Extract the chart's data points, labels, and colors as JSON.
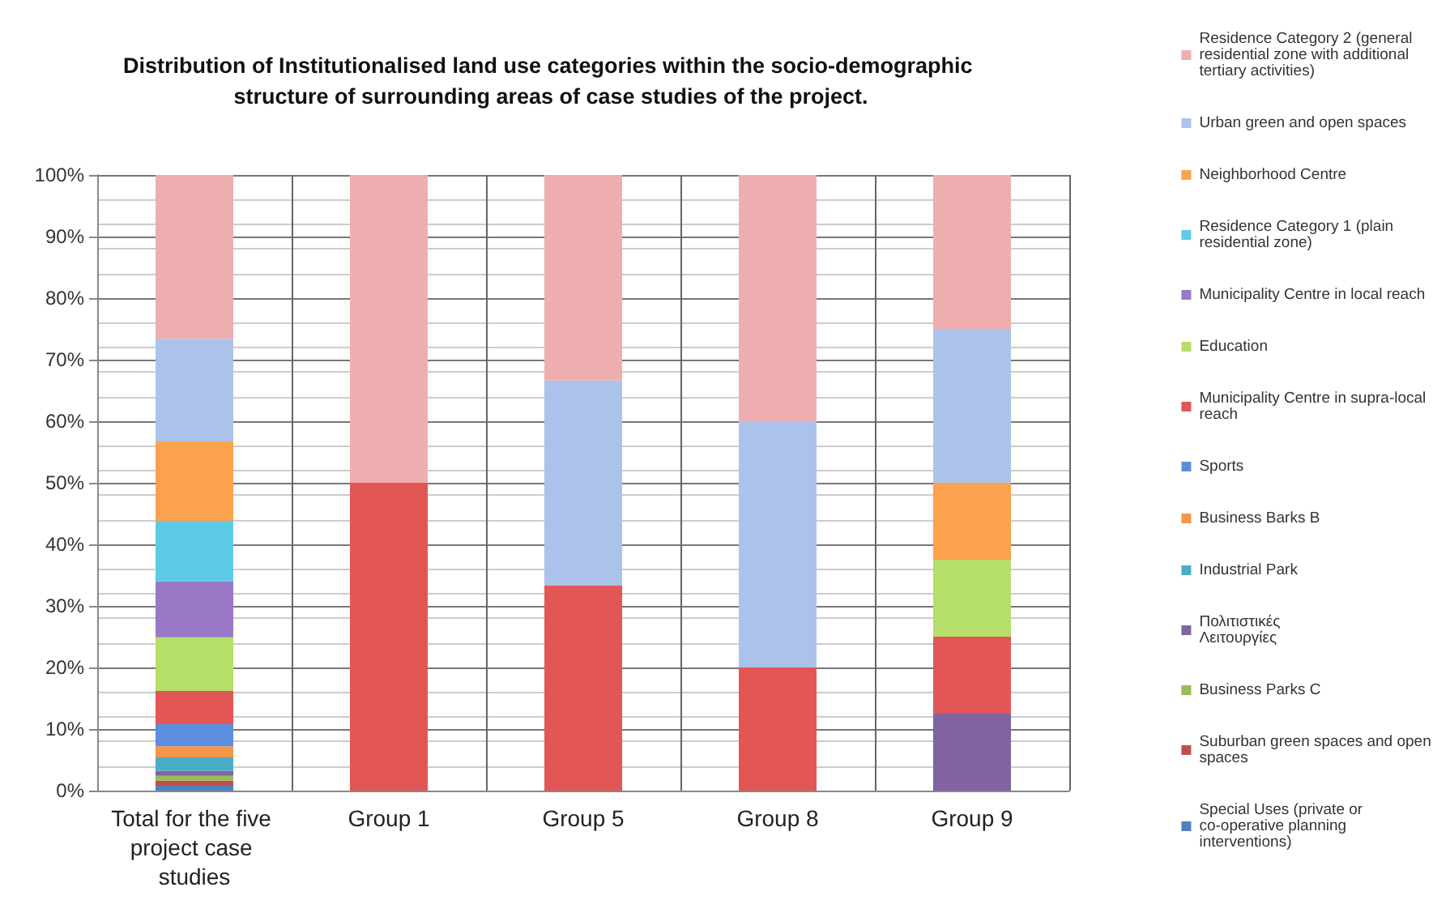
{
  "chart_data": {
    "type": "bar",
    "stacked": true,
    "title": "Distribution of Institutionalised land use categories within the socio-demographic structure of surrounding areas of case studies of the project.",
    "categories": [
      "Total for the five project case studies",
      "Group 1",
      "Group 5",
      "Group 8",
      "Group 9"
    ],
    "ylim": [
      0,
      100
    ],
    "yticks": [
      {
        "value": 0,
        "label": "0%"
      },
      {
        "value": 10,
        "label": "10%"
      },
      {
        "value": 20,
        "label": "20%"
      },
      {
        "value": 30,
        "label": "30%"
      },
      {
        "value": 40,
        "label": "40%"
      },
      {
        "value": 50,
        "label": "50%"
      },
      {
        "value": 60,
        "label": "60%"
      },
      {
        "value": 70,
        "label": "70%"
      },
      {
        "value": 80,
        "label": "80%"
      },
      {
        "value": 90,
        "label": "90%"
      },
      {
        "value": 100,
        "label": "100%"
      }
    ],
    "grid": "y",
    "legend": "right",
    "series": [
      {
        "name": "Special Uses (private or co-operative planning interventions)",
        "color": "#4f81bd",
        "values": [
          0.8,
          0,
          0,
          0,
          0
        ]
      },
      {
        "name": "Suburban green spaces and open spaces",
        "color": "#c0504d",
        "values": [
          0.8,
          0,
          0,
          0,
          0
        ]
      },
      {
        "name": "Business Parks C",
        "color": "#9bbb59",
        "values": [
          0.8,
          0,
          0,
          0,
          0
        ]
      },
      {
        "name": "Πολιτιστικές Λειτουργίες",
        "color": "#8064a2",
        "values": [
          0.8,
          0,
          0,
          0,
          12.5
        ]
      },
      {
        "name": "Industrial Park",
        "color": "#4bacc6",
        "values": [
          2.2,
          0,
          0,
          0,
          0
        ]
      },
      {
        "name": "Business Barks B",
        "color": "#f79646",
        "values": [
          1.8,
          0,
          0,
          0,
          0
        ]
      },
      {
        "name": "Sports",
        "color": "#5b8fdd",
        "values": [
          3.6,
          0,
          0,
          0,
          0
        ]
      },
      {
        "name": "Municipality Centre in supra-local reach",
        "color": "#e25656",
        "values": [
          5.4,
          50,
          33.3,
          20,
          12.5
        ]
      },
      {
        "name": "Education",
        "color": "#b5de6a",
        "values": [
          8.7,
          0,
          0,
          0,
          12.5
        ]
      },
      {
        "name": "Municipality Centre in local reach",
        "color": "#9a78c8",
        "values": [
          9.1,
          0,
          0,
          0,
          0
        ]
      },
      {
        "name": "Residence Category 1 (plain residential zone)",
        "color": "#5ccbe6",
        "values": [
          9.8,
          0,
          0,
          0,
          0
        ]
      },
      {
        "name": "Neighborhood Centre",
        "color": "#fba24f",
        "values": [
          12.9,
          0,
          0,
          0,
          12.5
        ]
      },
      {
        "name": "Urban green and open spaces",
        "color": "#abc3ea",
        "values": [
          16.7,
          0,
          33.3,
          40,
          25
        ]
      },
      {
        "name": "Residence Category 2 (general residential zone with additional tertiary activities)",
        "color": "#eeaeb0",
        "values": [
          26.6,
          50,
          33.4,
          40,
          25
        ]
      }
    ]
  }
}
